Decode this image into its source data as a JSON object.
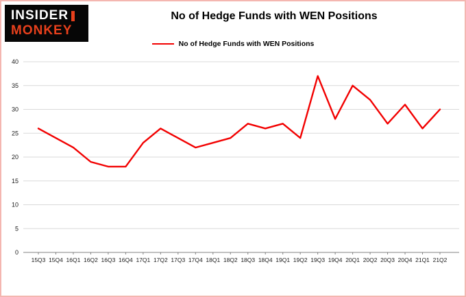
{
  "logo": {
    "line1": "INSIDER",
    "line2": "MONKEY",
    "bg": "#060606",
    "accent": "#e8401c"
  },
  "header": {
    "title": "No of Hedge Funds with WEN Positions"
  },
  "colors": {
    "frame_border": "#f4b6b0",
    "gridline": "#d9d9d9",
    "axis": "#808080",
    "tick_text": "#1a1a1a",
    "series_red": "#f20000"
  },
  "chart_data": {
    "type": "line",
    "title": "No of Hedge Funds with WEN Positions",
    "xlabel": "",
    "ylabel": "",
    "ylim": [
      0,
      40
    ],
    "ytick_step": 5,
    "grid": true,
    "legend_position": "top",
    "categories": [
      "15Q3",
      "15Q4",
      "16Q1",
      "16Q2",
      "16Q3",
      "16Q4",
      "17Q1",
      "17Q2",
      "17Q3",
      "17Q4",
      "18Q1",
      "18Q2",
      "18Q3",
      "18Q4",
      "19Q1",
      "19Q2",
      "19Q3",
      "19Q4",
      "20Q1",
      "20Q2",
      "20Q3",
      "20Q4",
      "21Q1",
      "21Q2"
    ],
    "series": [
      {
        "name": "No of Hedge Funds with WEN Positions",
        "color": "#f20000",
        "values": [
          26,
          24,
          22,
          19,
          18,
          18,
          23,
          26,
          24,
          22,
          23,
          24,
          27,
          26,
          27,
          24,
          37,
          28,
          35,
          32,
          27,
          31,
          26,
          30
        ]
      }
    ]
  }
}
